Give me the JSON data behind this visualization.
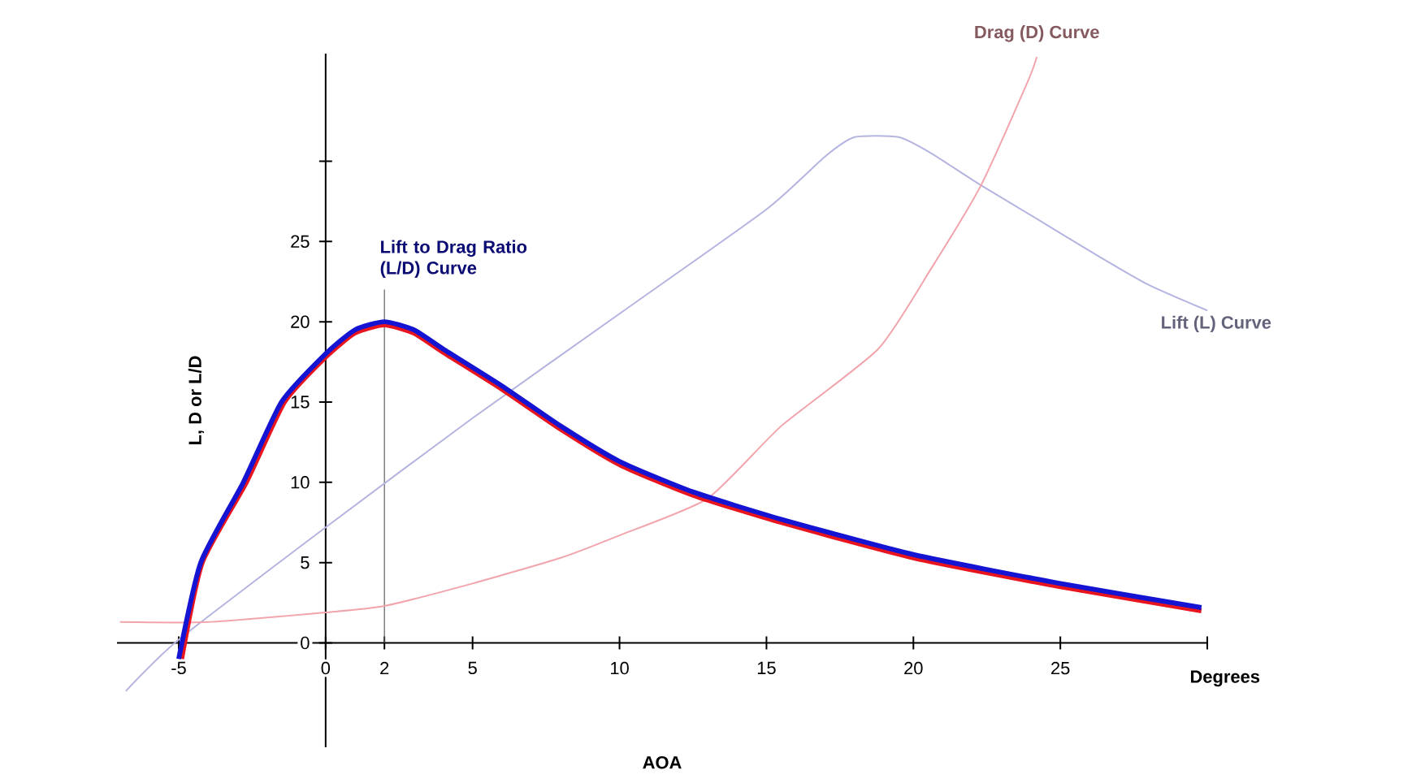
{
  "chart_data": {
    "type": "line",
    "xlabel": "AOA",
    "ylabel": "L, D or L/D",
    "xlim": [
      -7.1,
      30
    ],
    "ylim": [
      -6.5,
      36.7
    ],
    "xticks": [
      -5,
      0,
      2,
      5,
      10,
      15,
      20,
      25,
      {
        "value": 30,
        "label": null
      }
    ],
    "yticks": [
      0,
      5,
      10,
      15,
      20,
      25,
      {
        "value": 30,
        "label": null
      }
    ],
    "series": [
      {
        "name": "Lift (L) Curve",
        "color": "#b4b4e0",
        "x": [
          -6.8,
          -5,
          0,
          5,
          10,
          15,
          17,
          18,
          19.5,
          20.6,
          22.3,
          24.3,
          26.1,
          28,
          30
        ],
        "values": [
          -3,
          0.2,
          7.2,
          14,
          20.5,
          27,
          30.3,
          31.5,
          31.5,
          30.5,
          28.5,
          26.3,
          24.3,
          22.3,
          20.7
        ]
      },
      {
        "name": "Drag (D) Curve",
        "color": "#f2a4ac",
        "x": [
          -7,
          -4,
          0,
          2,
          5,
          8,
          10,
          13,
          15.5,
          18.8,
          20.6,
          22.3,
          23.9,
          24.2
        ],
        "values": [
          1.3,
          1.3,
          1.9,
          2.3,
          3.7,
          5.3,
          6.7,
          9,
          13.5,
          18.3,
          23.3,
          28.5,
          35,
          36.5
        ]
      },
      {
        "color": "#e8141e",
        "x": [
          -4.9,
          -4.2,
          -2.7,
          -1.4,
          0,
          1,
          2,
          3,
          4,
          6,
          8,
          10,
          12.5,
          15.5,
          20,
          25,
          29.8
        ],
        "values": [
          -1,
          5,
          10,
          15,
          17.8,
          19.3,
          19.8,
          19.3,
          18.1,
          15.8,
          13.3,
          11.1,
          9.2,
          7.5,
          5.3,
          3.5,
          2
        ]
      },
      {
        "name": "Lift to Drag Ratio (L/D) Curve",
        "color": "#1414d2",
        "x": [
          -5,
          -4.25,
          -2.8,
          -1.5,
          0,
          1,
          2,
          3,
          4,
          6,
          8,
          10,
          12.5,
          15.5,
          20,
          25,
          29.8
        ],
        "values": [
          -1,
          5,
          10,
          15,
          18,
          19.5,
          20,
          19.5,
          18.3,
          16,
          13.5,
          11.3,
          9.4,
          7.7,
          5.5,
          3.7,
          2.2
        ]
      }
    ],
    "ref_lines": [
      {
        "axis": "x",
        "value": 2,
        "color": "#606060"
      }
    ],
    "annotations": [
      "Degrees"
    ]
  }
}
